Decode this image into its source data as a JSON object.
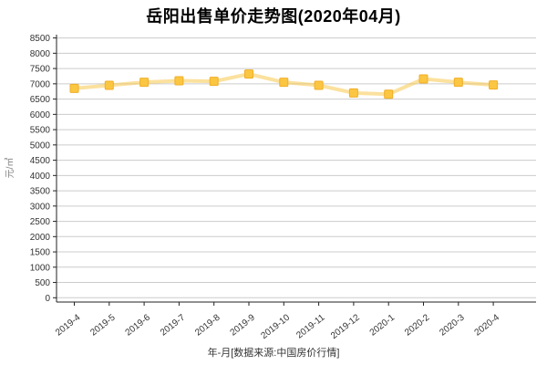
{
  "chart_data": {
    "type": "line",
    "title": "岳阳出售单价走势图(2020年04月)",
    "caption": "年-月[数据来源:中国房价行情]",
    "ylabel": "元/㎡",
    "xlabel": "年-月",
    "categories": [
      "2019-4",
      "2019-5",
      "2019-6",
      "2019-7",
      "2019-8",
      "2019-9",
      "2019-10",
      "2019-11",
      "2019-12",
      "2020-1",
      "2020-2",
      "2020-3",
      "2020-4"
    ],
    "series": [
      {
        "name": "出售单价",
        "values": [
          6850,
          6950,
          7050,
          7100,
          7080,
          7320,
          7050,
          6950,
          6700,
          6660,
          7160,
          7050,
          6960
        ]
      }
    ],
    "ylim": [
      0,
      8500
    ],
    "ytick_step": 500,
    "ytick_labels": [
      "0",
      "500",
      "1000",
      "1500",
      "2000",
      "2500",
      "3000",
      "3500",
      "4000",
      "4500",
      "5000",
      "5500",
      "6000",
      "6500",
      "7000",
      "7500",
      "8000",
      "8500"
    ],
    "grid": true,
    "legend_position": "none",
    "colors": {
      "line": "#f7c94e",
      "line_opacity": "0.55",
      "marker_fill": "#fbc642",
      "marker_stroke": "#f0ae27",
      "grid": "#cccccc",
      "axis": "#222222",
      "tick_label": "#333333",
      "ylabel_text": "#808080",
      "title_text": "#000000"
    }
  }
}
